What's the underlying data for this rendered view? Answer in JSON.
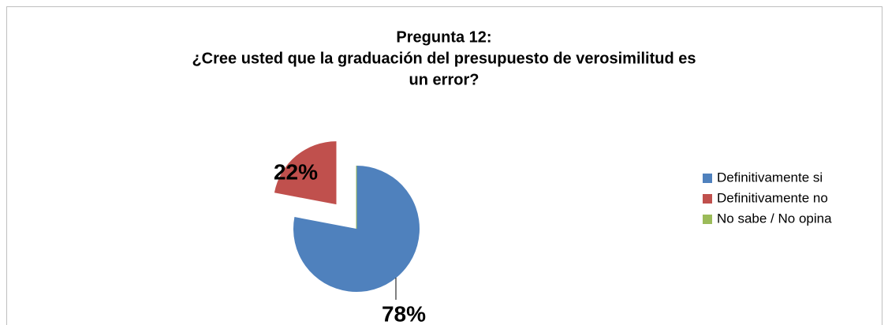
{
  "chart_data": {
    "type": "pie",
    "title": [
      "Pregunta 12:",
      "¿Cree usted que la graduación del presupuesto de verosimilitud es",
      "un error?"
    ],
    "categories": [
      "Definitivamente si",
      "Definitivamente no",
      "No sabe / No opina"
    ],
    "values": [
      78,
      22,
      0
    ],
    "value_labels": [
      "78%",
      "22%",
      null
    ],
    "colors": [
      "#4f81bd",
      "#c0504d",
      "#9bbb59"
    ],
    "legend": "right"
  }
}
